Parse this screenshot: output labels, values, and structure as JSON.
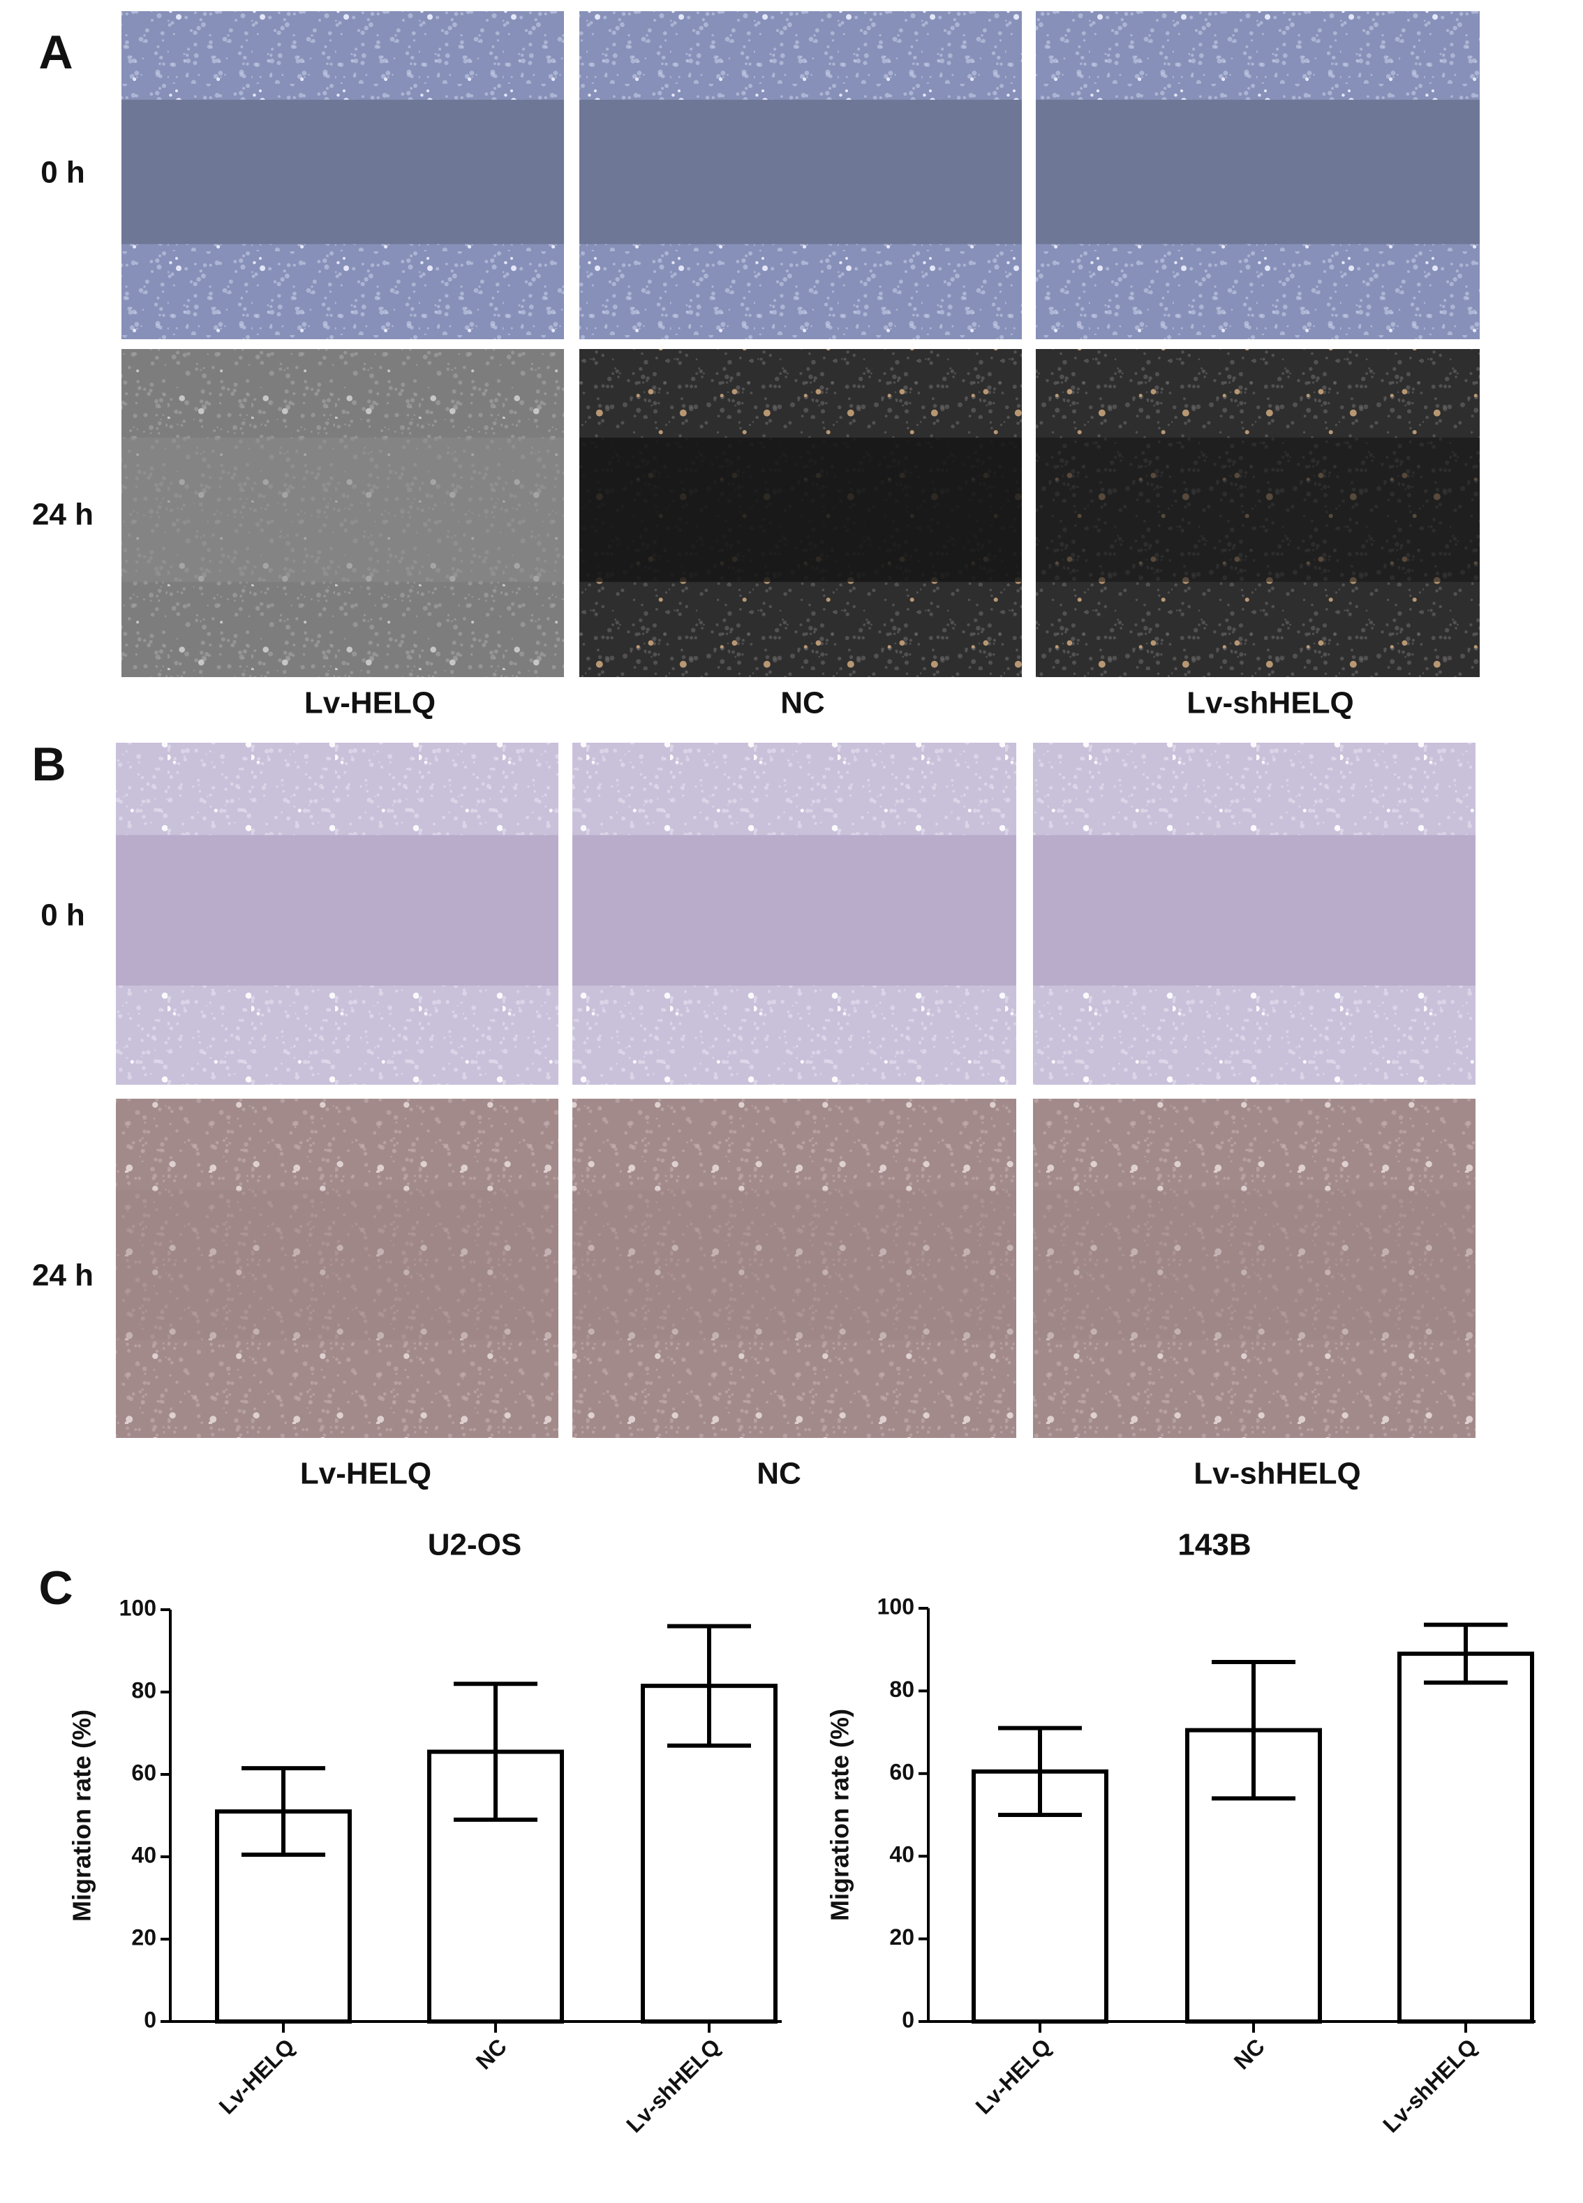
{
  "panel_a": {
    "label": "A",
    "rows": [
      "0 h",
      "24 h"
    ],
    "columns": [
      "Lv-HELQ",
      "NC",
      "Lv-shHELQ"
    ]
  },
  "panel_b": {
    "label": "B",
    "rows": [
      "0 h",
      "24 h"
    ],
    "columns": [
      "Lv-HELQ",
      "NC",
      "Lv-shHELQ"
    ]
  },
  "panel_c": {
    "label": "C"
  },
  "chart_data": [
    {
      "type": "bar",
      "title": "U2-OS",
      "ylabel": "Migration rate (%)",
      "categories": [
        "Lv-HELQ",
        "NC",
        "Lv-shHELQ"
      ],
      "values": [
        51,
        65.5,
        81.5
      ],
      "errors": [
        10.5,
        16.5,
        14.5
      ],
      "color": "#ffffff",
      "ylim": [
        0,
        100
      ],
      "yticks": [
        0,
        20,
        40,
        60,
        80,
        100
      ]
    },
    {
      "type": "bar",
      "title": "143B",
      "ylabel": "Migration rate (%)",
      "categories": [
        "Lv-HELQ",
        "NC",
        "Lv-shHELQ"
      ],
      "values": [
        60.5,
        70.5,
        89
      ],
      "errors": [
        10.5,
        16.5,
        7
      ],
      "color": "#ffffff",
      "ylim": [
        0,
        100
      ],
      "yticks": [
        0,
        20,
        40,
        60,
        80,
        100
      ]
    }
  ]
}
